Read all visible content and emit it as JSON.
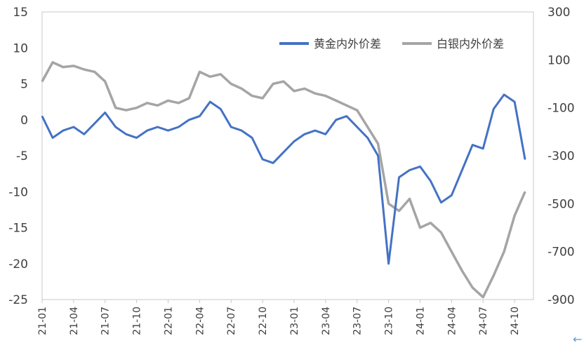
{
  "chart_data": {
    "type": "line",
    "title": "",
    "xlabel": "",
    "ylabel": "",
    "y2label": "",
    "x_ticks": [
      "21-01",
      "21-04",
      "21-07",
      "21-10",
      "22-01",
      "22-04",
      "22-07",
      "22-10",
      "23-01",
      "23-04",
      "23-07",
      "23-10",
      "24-01",
      "24-04",
      "24-07",
      "24-10"
    ],
    "ylim": [
      -25,
      15
    ],
    "y_ticks": [
      15,
      10,
      5,
      0,
      -5,
      -10,
      -15,
      -20,
      -25
    ],
    "y2lim": [
      -900,
      300
    ],
    "y2_ticks": [
      300,
      100,
      -100,
      -300,
      -500,
      -700,
      -900
    ],
    "grid": false,
    "legend_position": "top-right",
    "series": [
      {
        "name": "黄金内外价差",
        "axis": "left",
        "color": "#4472c4",
        "x": [
          "21-01",
          "21-02",
          "21-03",
          "21-04",
          "21-05",
          "21-06",
          "21-07",
          "21-08",
          "21-09",
          "21-10",
          "21-11",
          "21-12",
          "22-01",
          "22-02",
          "22-03",
          "22-04",
          "22-05",
          "22-06",
          "22-07",
          "22-08",
          "22-09",
          "22-10",
          "22-11",
          "22-12",
          "23-01",
          "23-02",
          "23-03",
          "23-04",
          "23-05",
          "23-06",
          "23-07",
          "23-08",
          "23-09",
          "23-10",
          "23-11",
          "23-12",
          "24-01",
          "24-02",
          "24-03",
          "24-04",
          "24-05",
          "24-06",
          "24-07",
          "24-08",
          "24-09",
          "24-10",
          "24-11"
        ],
        "values": [
          0.5,
          -2.5,
          -1.5,
          -1.0,
          -2.0,
          -0.5,
          1.0,
          -1.0,
          -2.0,
          -2.5,
          -1.5,
          -1.0,
          -1.5,
          -1.0,
          0.0,
          0.5,
          2.5,
          1.5,
          -1.0,
          -1.5,
          -2.5,
          -5.5,
          -6.0,
          -4.5,
          -3.0,
          -2.0,
          -1.5,
          -2.0,
          0.0,
          0.5,
          -1.0,
          -2.5,
          -5.0,
          -20.0,
          -8.0,
          -7.0,
          -6.5,
          -8.5,
          -11.5,
          -10.5,
          -7.0,
          -3.5,
          -4.0,
          1.5,
          3.5,
          2.5,
          -5.5
        ]
      },
      {
        "name": "白银内外价差",
        "axis": "right",
        "color": "#a5a5a5",
        "x": [
          "21-01",
          "21-02",
          "21-03",
          "21-04",
          "21-05",
          "21-06",
          "21-07",
          "21-08",
          "21-09",
          "21-10",
          "21-11",
          "21-12",
          "22-01",
          "22-02",
          "22-03",
          "22-04",
          "22-05",
          "22-06",
          "22-07",
          "22-08",
          "22-09",
          "22-10",
          "22-11",
          "22-12",
          "23-01",
          "23-02",
          "23-03",
          "23-04",
          "23-05",
          "23-06",
          "23-07",
          "23-08",
          "23-09",
          "23-10",
          "23-11",
          "23-12",
          "24-01",
          "24-02",
          "24-03",
          "24-04",
          "24-05",
          "24-06",
          "24-07",
          "24-08",
          "24-09",
          "24-10",
          "24-11"
        ],
        "values": [
          10,
          90,
          70,
          75,
          60,
          50,
          10,
          -100,
          -110,
          -100,
          -80,
          -90,
          -70,
          -80,
          -60,
          50,
          30,
          40,
          0,
          -20,
          -50,
          -60,
          0,
          10,
          -30,
          -20,
          -40,
          -50,
          -70,
          -90,
          -110,
          -180,
          -250,
          -500,
          -530,
          -480,
          -600,
          -580,
          -620,
          -700,
          -780,
          -850,
          -890,
          -800,
          -700,
          -550,
          -450
        ]
      }
    ]
  },
  "ui": {
    "corner_icon": "left-arrow-icon",
    "corner_glyph": "←"
  }
}
